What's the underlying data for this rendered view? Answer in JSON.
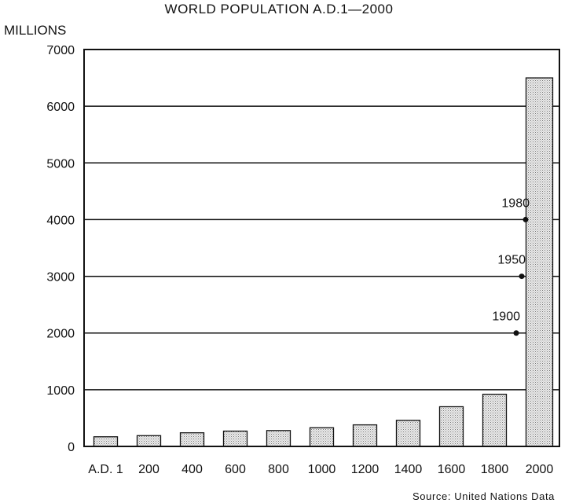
{
  "chart_data": {
    "type": "bar",
    "title": "WORLD POPULATION  A.D.1—2000",
    "ylabel": "MILLIONS",
    "xlabel": "",
    "source": "Source: United Nations Data",
    "categories": [
      "A.D. 1",
      "200",
      "400",
      "600",
      "800",
      "1000",
      "1200",
      "1400",
      "1600",
      "1800",
      "2000"
    ],
    "values": [
      170,
      190,
      240,
      270,
      280,
      330,
      380,
      460,
      700,
      920,
      6500
    ],
    "ylim": [
      0,
      7000
    ],
    "yticks": [
      0,
      1000,
      2000,
      3000,
      4000,
      5000,
      6000,
      7000
    ],
    "grid": true,
    "annotations": [
      {
        "label": "1900",
        "value": 2000
      },
      {
        "label": "1950",
        "value": 3000
      },
      {
        "label": "1980",
        "value": 4000
      }
    ],
    "colors": {
      "bar_fill": "#dcdcdc",
      "bar_edge": "#111111",
      "grid": "#111111",
      "dot": "#111111"
    }
  }
}
